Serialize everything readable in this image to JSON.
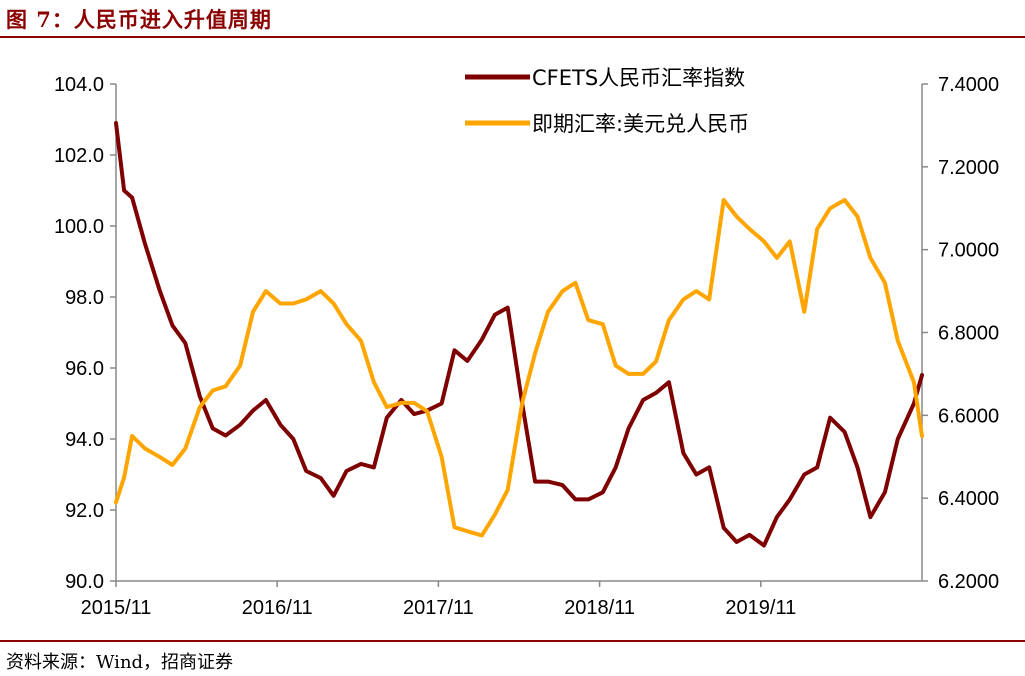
{
  "figure": {
    "title": "图 7：人民币进入升值周期",
    "source": "资料来源：Wind，招商证券"
  },
  "chart_data": {
    "type": "line",
    "title": "",
    "x_tick_labels": [
      "2015/11",
      "2016/11",
      "2017/11",
      "2018/11",
      "2019/11"
    ],
    "y_left": {
      "range": [
        90,
        104
      ],
      "ticks": [
        "90.0",
        "92.0",
        "94.0",
        "96.0",
        "98.0",
        "100.0",
        "102.0",
        "104.0"
      ]
    },
    "y_right": {
      "range": [
        6.2,
        7.4
      ],
      "ticks": [
        "6.2000",
        "6.4000",
        "6.6000",
        "6.8000",
        "7.0000",
        "7.2000",
        "7.4000"
      ]
    },
    "legend_position": "top-center",
    "series": [
      {
        "name": "CFETS人民币汇率指数",
        "axis": "left",
        "color": "#7f0000",
        "x": [
          2015.9,
          2015.95,
          2016.0,
          2016.08,
          2016.17,
          2016.25,
          2016.33,
          2016.42,
          2016.5,
          2016.58,
          2016.67,
          2016.75,
          2016.83,
          2016.92,
          2017.0,
          2017.08,
          2017.17,
          2017.25,
          2017.33,
          2017.42,
          2017.5,
          2017.58,
          2017.67,
          2017.75,
          2017.83,
          2017.92,
          2018.0,
          2018.08,
          2018.17,
          2018.25,
          2018.33,
          2018.42,
          2018.5,
          2018.58,
          2018.67,
          2018.75,
          2018.83,
          2018.92,
          2019.0,
          2019.08,
          2019.17,
          2019.25,
          2019.33,
          2019.42,
          2019.5,
          2019.58,
          2019.67,
          2019.75,
          2019.83,
          2019.92,
          2020.0,
          2020.08,
          2020.17,
          2020.25,
          2020.33,
          2020.42,
          2020.5,
          2020.58,
          2020.67,
          2020.75,
          2020.85,
          2020.9
        ],
        "values": [
          102.9,
          101.0,
          100.8,
          99.5,
          98.2,
          97.2,
          96.7,
          95.2,
          94.3,
          94.1,
          94.4,
          94.8,
          95.1,
          94.4,
          94.0,
          93.1,
          92.9,
          92.4,
          93.1,
          93.3,
          93.2,
          94.6,
          95.1,
          94.7,
          94.8,
          95.0,
          96.5,
          96.2,
          96.8,
          97.5,
          97.7,
          95.0,
          92.8,
          92.8,
          92.7,
          92.3,
          92.3,
          92.5,
          93.2,
          94.3,
          95.1,
          95.3,
          95.6,
          93.6,
          93.0,
          93.2,
          91.5,
          91.1,
          91.3,
          91.0,
          91.8,
          92.3,
          93.0,
          93.2,
          94.6,
          94.2,
          93.2,
          91.8,
          92.5,
          94.0,
          95.0,
          95.8
        ]
      },
      {
        "name": "即期汇率:美元兑人民币",
        "axis": "right",
        "color": "#ffa500",
        "x": [
          2015.9,
          2015.95,
          2016.0,
          2016.08,
          2016.17,
          2016.25,
          2016.33,
          2016.42,
          2016.5,
          2016.58,
          2016.67,
          2016.75,
          2016.83,
          2016.92,
          2017.0,
          2017.08,
          2017.17,
          2017.25,
          2017.33,
          2017.42,
          2017.5,
          2017.58,
          2017.67,
          2017.75,
          2017.83,
          2017.92,
          2018.0,
          2018.08,
          2018.17,
          2018.25,
          2018.33,
          2018.42,
          2018.5,
          2018.58,
          2018.67,
          2018.75,
          2018.83,
          2018.92,
          2019.0,
          2019.08,
          2019.17,
          2019.25,
          2019.33,
          2019.42,
          2019.5,
          2019.58,
          2019.67,
          2019.75,
          2019.83,
          2019.92,
          2020.0,
          2020.08,
          2020.17,
          2020.25,
          2020.33,
          2020.42,
          2020.5,
          2020.58,
          2020.67,
          2020.75,
          2020.85,
          2020.9
        ],
        "values": [
          6.39,
          6.45,
          6.55,
          6.52,
          6.5,
          6.48,
          6.52,
          6.62,
          6.66,
          6.67,
          6.72,
          6.85,
          6.9,
          6.87,
          6.87,
          6.88,
          6.9,
          6.87,
          6.82,
          6.78,
          6.68,
          6.62,
          6.63,
          6.63,
          6.61,
          6.5,
          6.33,
          6.32,
          6.31,
          6.36,
          6.42,
          6.63,
          6.75,
          6.85,
          6.9,
          6.92,
          6.83,
          6.82,
          6.72,
          6.7,
          6.7,
          6.73,
          6.83,
          6.88,
          6.9,
          6.88,
          7.12,
          7.08,
          7.05,
          7.02,
          6.98,
          7.02,
          6.85,
          7.05,
          7.1,
          7.12,
          7.08,
          6.98,
          6.92,
          6.78,
          6.68,
          6.55
        ]
      }
    ]
  }
}
